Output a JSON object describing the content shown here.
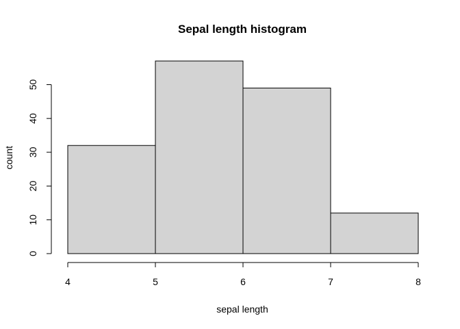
{
  "chart_data": {
    "type": "bar",
    "title": "Sepal length histogram",
    "xlabel": "sepal length",
    "ylabel": "count",
    "bins": [
      {
        "from": 4,
        "to": 5,
        "count": 32
      },
      {
        "from": 5,
        "to": 6,
        "count": 57
      },
      {
        "from": 6,
        "to": 7,
        "count": 49
      },
      {
        "from": 7,
        "to": 8,
        "count": 12
      }
    ],
    "x_ticks": [
      4,
      5,
      6,
      7,
      8
    ],
    "y_ticks": [
      0,
      10,
      20,
      30,
      40,
      50
    ],
    "xlim": [
      4,
      8
    ],
    "ylim": [
      0,
      57
    ],
    "grid": false,
    "legend": "none",
    "colors": {
      "bar_fill": "#d3d3d3",
      "bar_stroke": "#000000"
    }
  }
}
